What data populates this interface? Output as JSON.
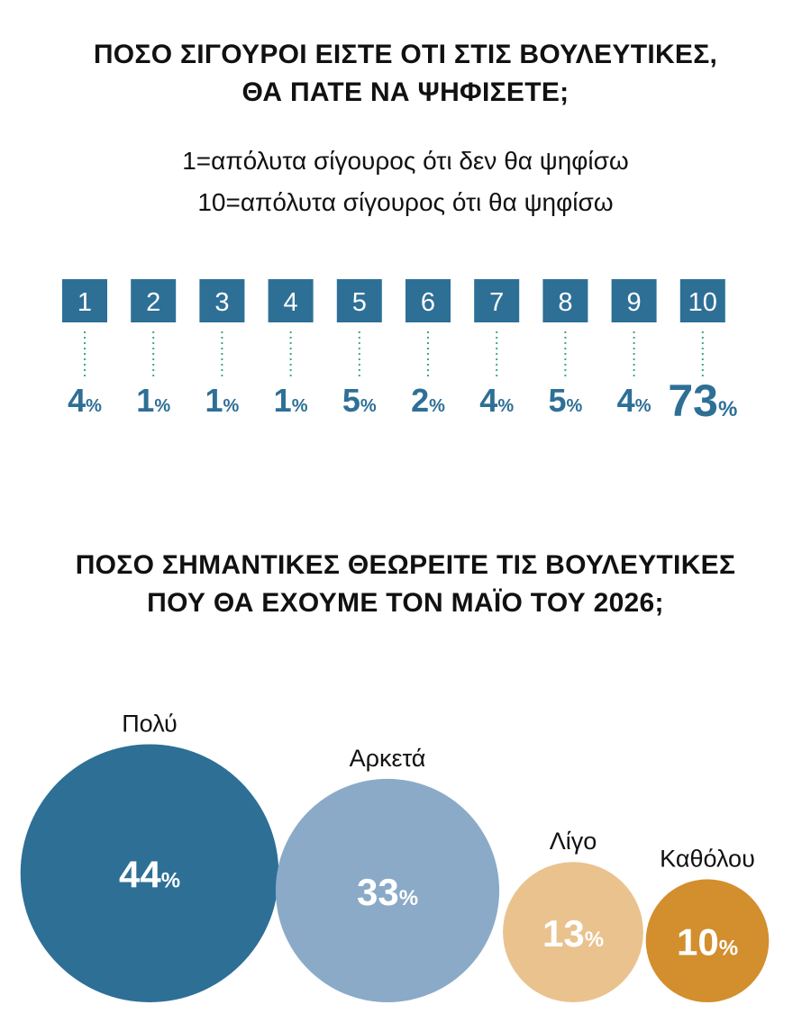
{
  "chart_data": [
    {
      "type": "bar",
      "title": [
        "ΠΟΣΟ ΣΙΓΟΥΡΟΙ ΕΙΣΤΕ ΟΤΙ ΣΤΙΣ ΒΟΥΛΕΥΤΙΚΕΣ,",
        "ΘΑ ΠΑΤΕ ΝΑ ΨΗΦΙΣΕΤΕ;"
      ],
      "subtitle": [
        "1=απόλυτα σίγουρος ότι δεν θα ψηφίσω",
        "10=απόλυτα σίγουρος ότι θα ψηφίσω"
      ],
      "categories": [
        "1",
        "2",
        "3",
        "4",
        "5",
        "6",
        "7",
        "8",
        "9",
        "10"
      ],
      "values": [
        4,
        1,
        1,
        1,
        5,
        2,
        4,
        5,
        4,
        73
      ],
      "unit": "%",
      "colors": {
        "box": "#2e6f96",
        "value": "#2e6f96",
        "connector": "#3aa88a"
      }
    },
    {
      "type": "bubble",
      "title": [
        "ΠΟΣΟ ΣΗΜΑΝΤΙΚΕΣ ΘΕΩΡΕΙΤΕ ΤΙΣ ΒΟΥΛΕΥΤΙΚΕΣ",
        "ΠΟΥ ΘΑ ΕΧΟΥΜΕ ΤΟΝ ΜΑΪΟ ΤΟΥ 2026;"
      ],
      "categories": [
        "Πολύ",
        "Αρκετά",
        "Λίγο",
        "Καθόλου"
      ],
      "values": [
        44,
        33,
        13,
        10
      ],
      "unit": "%",
      "colors": [
        "#2e6f96",
        "#8aaac8",
        "#e9c28e",
        "#d38e2e"
      ]
    }
  ]
}
